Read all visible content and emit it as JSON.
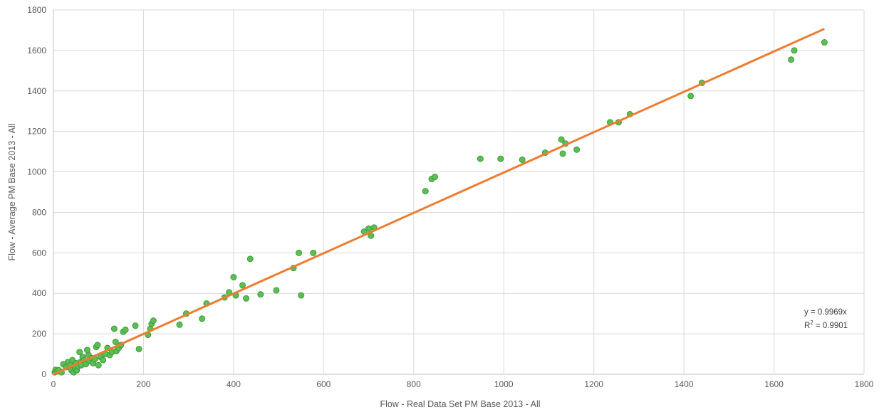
{
  "chart_data": {
    "type": "scatter",
    "title": "",
    "xlabel": "Flow - Real Data Set PM Base 2013 - All",
    "ylabel": "Flow - Average PM Base 2013 - All",
    "xlim": [
      0,
      1800
    ],
    "ylim": [
      0,
      1800
    ],
    "xticks": [
      "0",
      "200",
      "400",
      "600",
      "800",
      "1000",
      "1200",
      "1400",
      "1600",
      "1800"
    ],
    "yticks": [
      "0",
      "200",
      "400",
      "600",
      "800",
      "1000",
      "1200",
      "1400",
      "1600",
      "1800"
    ],
    "grid": true,
    "legend": "none",
    "colors": {
      "points": "#5bbf55",
      "points_edge": "#3f9a3a",
      "trendline": "#ed7d31",
      "grid": "#d9d9d9",
      "axis": "#bfbfbf"
    },
    "trendline": {
      "slope": 0.9969,
      "intercept": 0,
      "x_range": [
        0,
        1710
      ],
      "equation_label": "y = 0.9969x",
      "r2_prefix": "R",
      "r2_exponent": "2",
      "r2_value_text": " = 0.9901"
    },
    "series": [
      {
        "points": [
          [
            3,
            10
          ],
          [
            5,
            22
          ],
          [
            8,
            15
          ],
          [
            12,
            20
          ],
          [
            18,
            10
          ],
          [
            22,
            50
          ],
          [
            28,
            35
          ],
          [
            32,
            60
          ],
          [
            38,
            45
          ],
          [
            40,
            20
          ],
          [
            42,
            70
          ],
          [
            45,
            10
          ],
          [
            48,
            30
          ],
          [
            50,
            55
          ],
          [
            52,
            20
          ],
          [
            55,
            40
          ],
          [
            58,
            110
          ],
          [
            60,
            60
          ],
          [
            62,
            45
          ],
          [
            65,
            85
          ],
          [
            68,
            70
          ],
          [
            72,
            50
          ],
          [
            75,
            120
          ],
          [
            78,
            95
          ],
          [
            80,
            65
          ],
          [
            85,
            80
          ],
          [
            88,
            55
          ],
          [
            92,
            75
          ],
          [
            95,
            135
          ],
          [
            98,
            145
          ],
          [
            100,
            45
          ],
          [
            105,
            85
          ],
          [
            110,
            70
          ],
          [
            115,
            100
          ],
          [
            120,
            130
          ],
          [
            125,
            95
          ],
          [
            130,
            110
          ],
          [
            135,
            225
          ],
          [
            138,
            160
          ],
          [
            140,
            115
          ],
          [
            145,
            130
          ],
          [
            150,
            145
          ],
          [
            155,
            210
          ],
          [
            160,
            220
          ],
          [
            182,
            240
          ],
          [
            190,
            125
          ],
          [
            210,
            195
          ],
          [
            215,
            225
          ],
          [
            218,
            250
          ],
          [
            222,
            265
          ],
          [
            280,
            245
          ],
          [
            295,
            300
          ],
          [
            330,
            275
          ],
          [
            340,
            350
          ],
          [
            380,
            380
          ],
          [
            390,
            405
          ],
          [
            400,
            480
          ],
          [
            405,
            390
          ],
          [
            420,
            440
          ],
          [
            428,
            375
          ],
          [
            437,
            570
          ],
          [
            460,
            395
          ],
          [
            495,
            415
          ],
          [
            533,
            525
          ],
          [
            545,
            600
          ],
          [
            550,
            390
          ],
          [
            577,
            600
          ],
          [
            690,
            705
          ],
          [
            700,
            720
          ],
          [
            705,
            685
          ],
          [
            712,
            725
          ],
          [
            826,
            905
          ],
          [
            840,
            965
          ],
          [
            847,
            975
          ],
          [
            948,
            1065
          ],
          [
            993,
            1065
          ],
          [
            1041,
            1060
          ],
          [
            1092,
            1095
          ],
          [
            1128,
            1160
          ],
          [
            1131,
            1090
          ],
          [
            1137,
            1140
          ],
          [
            1162,
            1110
          ],
          [
            1236,
            1245
          ],
          [
            1255,
            1245
          ],
          [
            1280,
            1285
          ],
          [
            1415,
            1375
          ],
          [
            1440,
            1440
          ],
          [
            1638,
            1555
          ],
          [
            1645,
            1600
          ],
          [
            1712,
            1640
          ]
        ]
      }
    ]
  }
}
